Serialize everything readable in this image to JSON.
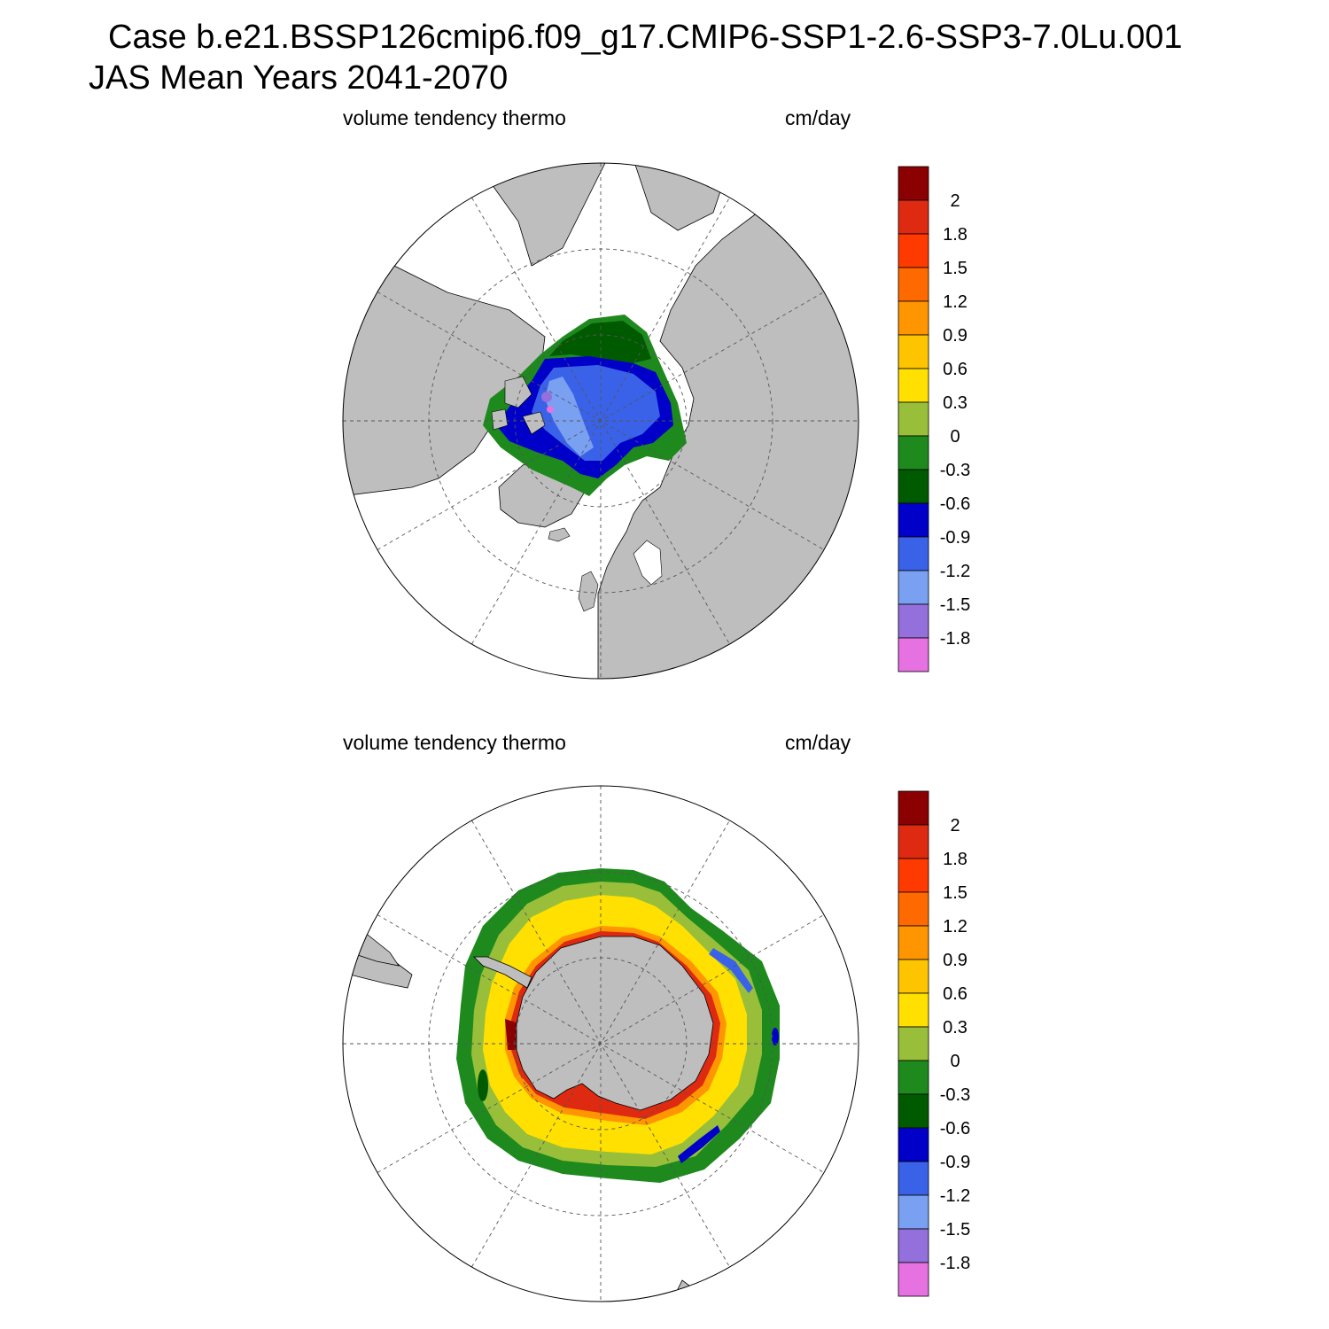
{
  "title": {
    "line1": "Case b.e21.BSSP126cmip6.f09_g17.CMIP6-SSP1-2.6-SSP3-7.0Lu.001",
    "line2": "JAS Mean   Years 2041-2070"
  },
  "panels": [
    {
      "left_label": "volume tendency thermo",
      "right_label": "cm/day",
      "hemisphere": "north"
    },
    {
      "left_label": "volume tendency thermo",
      "right_label": "cm/day",
      "hemisphere": "south"
    }
  ],
  "colorbar": {
    "tick_labels": [
      "2",
      "1.8",
      "1.5",
      "1.2",
      "0.9",
      "0.6",
      "0.3",
      "0",
      "-0.3",
      "-0.6",
      "-0.9",
      "-1.2",
      "-1.5",
      "-1.8"
    ],
    "colors": [
      "#8b0000",
      "#dd2a10",
      "#ff3a00",
      "#ff6a00",
      "#ff9500",
      "#ffc400",
      "#ffe000",
      "#99bf3a",
      "#1e8a1e",
      "#005a00",
      "#0000c8",
      "#3a62e8",
      "#7aa0f2",
      "#9370db",
      "#e572e0"
    ]
  },
  "colors": {
    "land": "#bebebe",
    "ocean": "#ffffff"
  }
}
